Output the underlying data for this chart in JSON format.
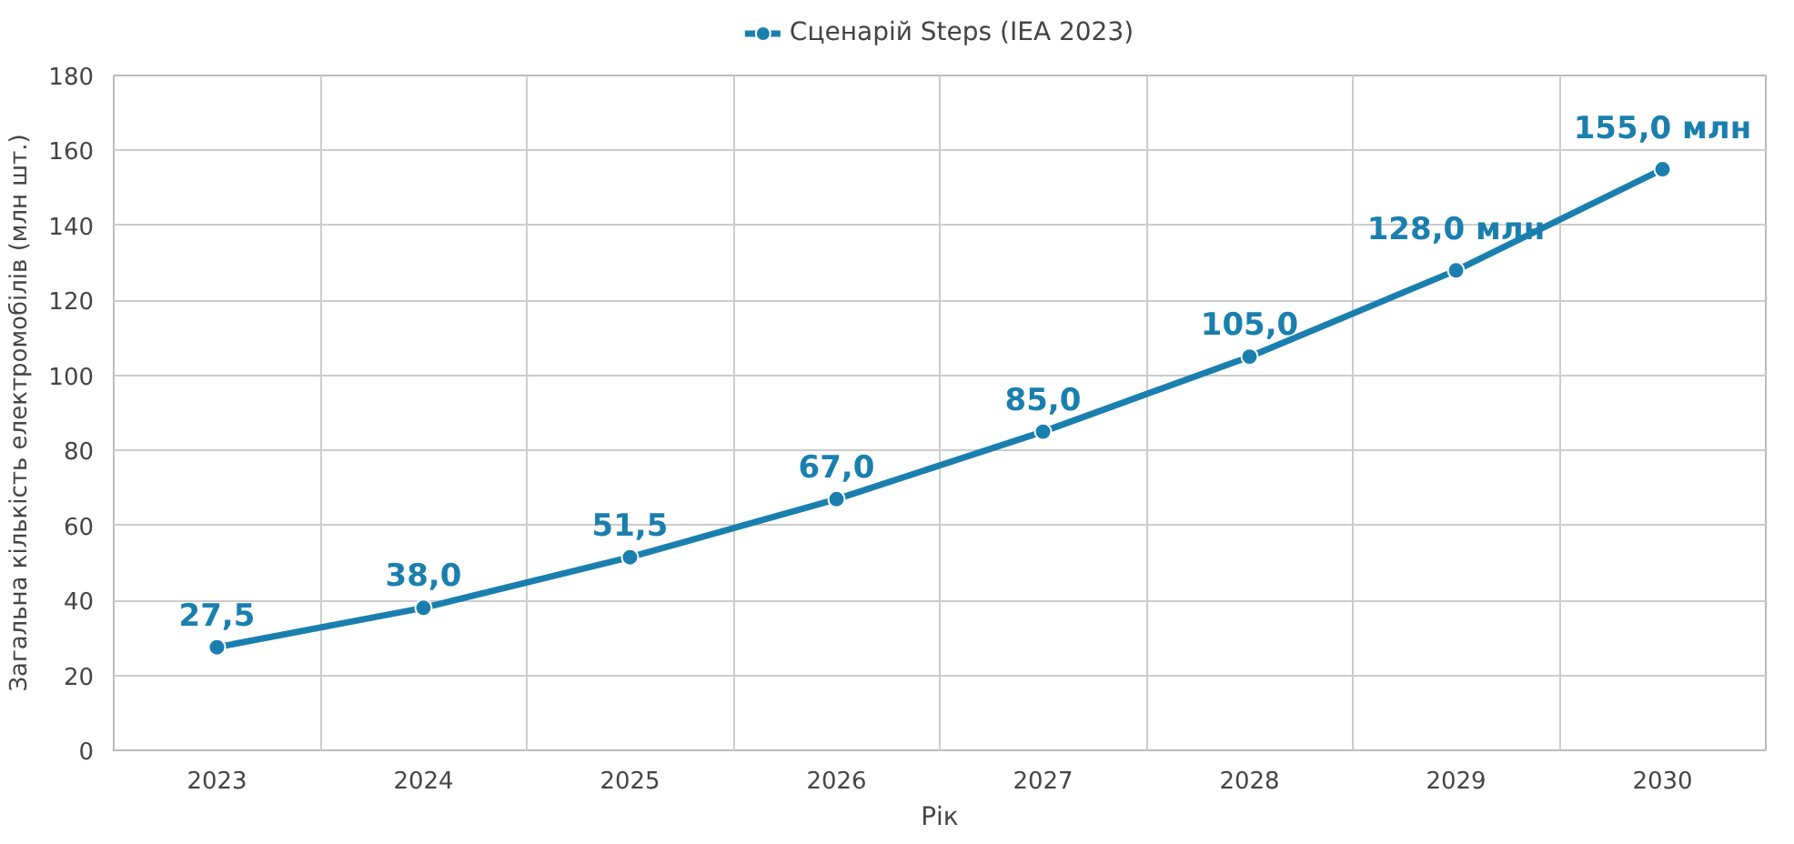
{
  "chart_data": {
    "type": "line",
    "xlabel": "Рік",
    "ylabel": "Загальна кількість електромобілів (млн шт.)",
    "categories": [
      "2023",
      "2024",
      "2025",
      "2026",
      "2027",
      "2028",
      "2029",
      "2030"
    ],
    "series": [
      {
        "name": "Сценарій Steps (IEA 2023)",
        "color": "#1a7fae",
        "values": [
          27.5,
          38.0,
          51.5,
          67.0,
          85.0,
          105.0,
          128.0,
          155.0
        ],
        "value_labels": [
          "27,5",
          "38,0",
          "51,5",
          "67,0",
          "85,0",
          "105,0",
          "128,0 млн",
          "155,0 млн"
        ]
      }
    ],
    "ylim": [
      0,
      180
    ],
    "yticks": [
      0,
      20,
      40,
      60,
      80,
      100,
      120,
      140,
      160,
      180
    ],
    "grid": true,
    "legend": "top",
    "marker": "circle",
    "line_style": "solid"
  }
}
